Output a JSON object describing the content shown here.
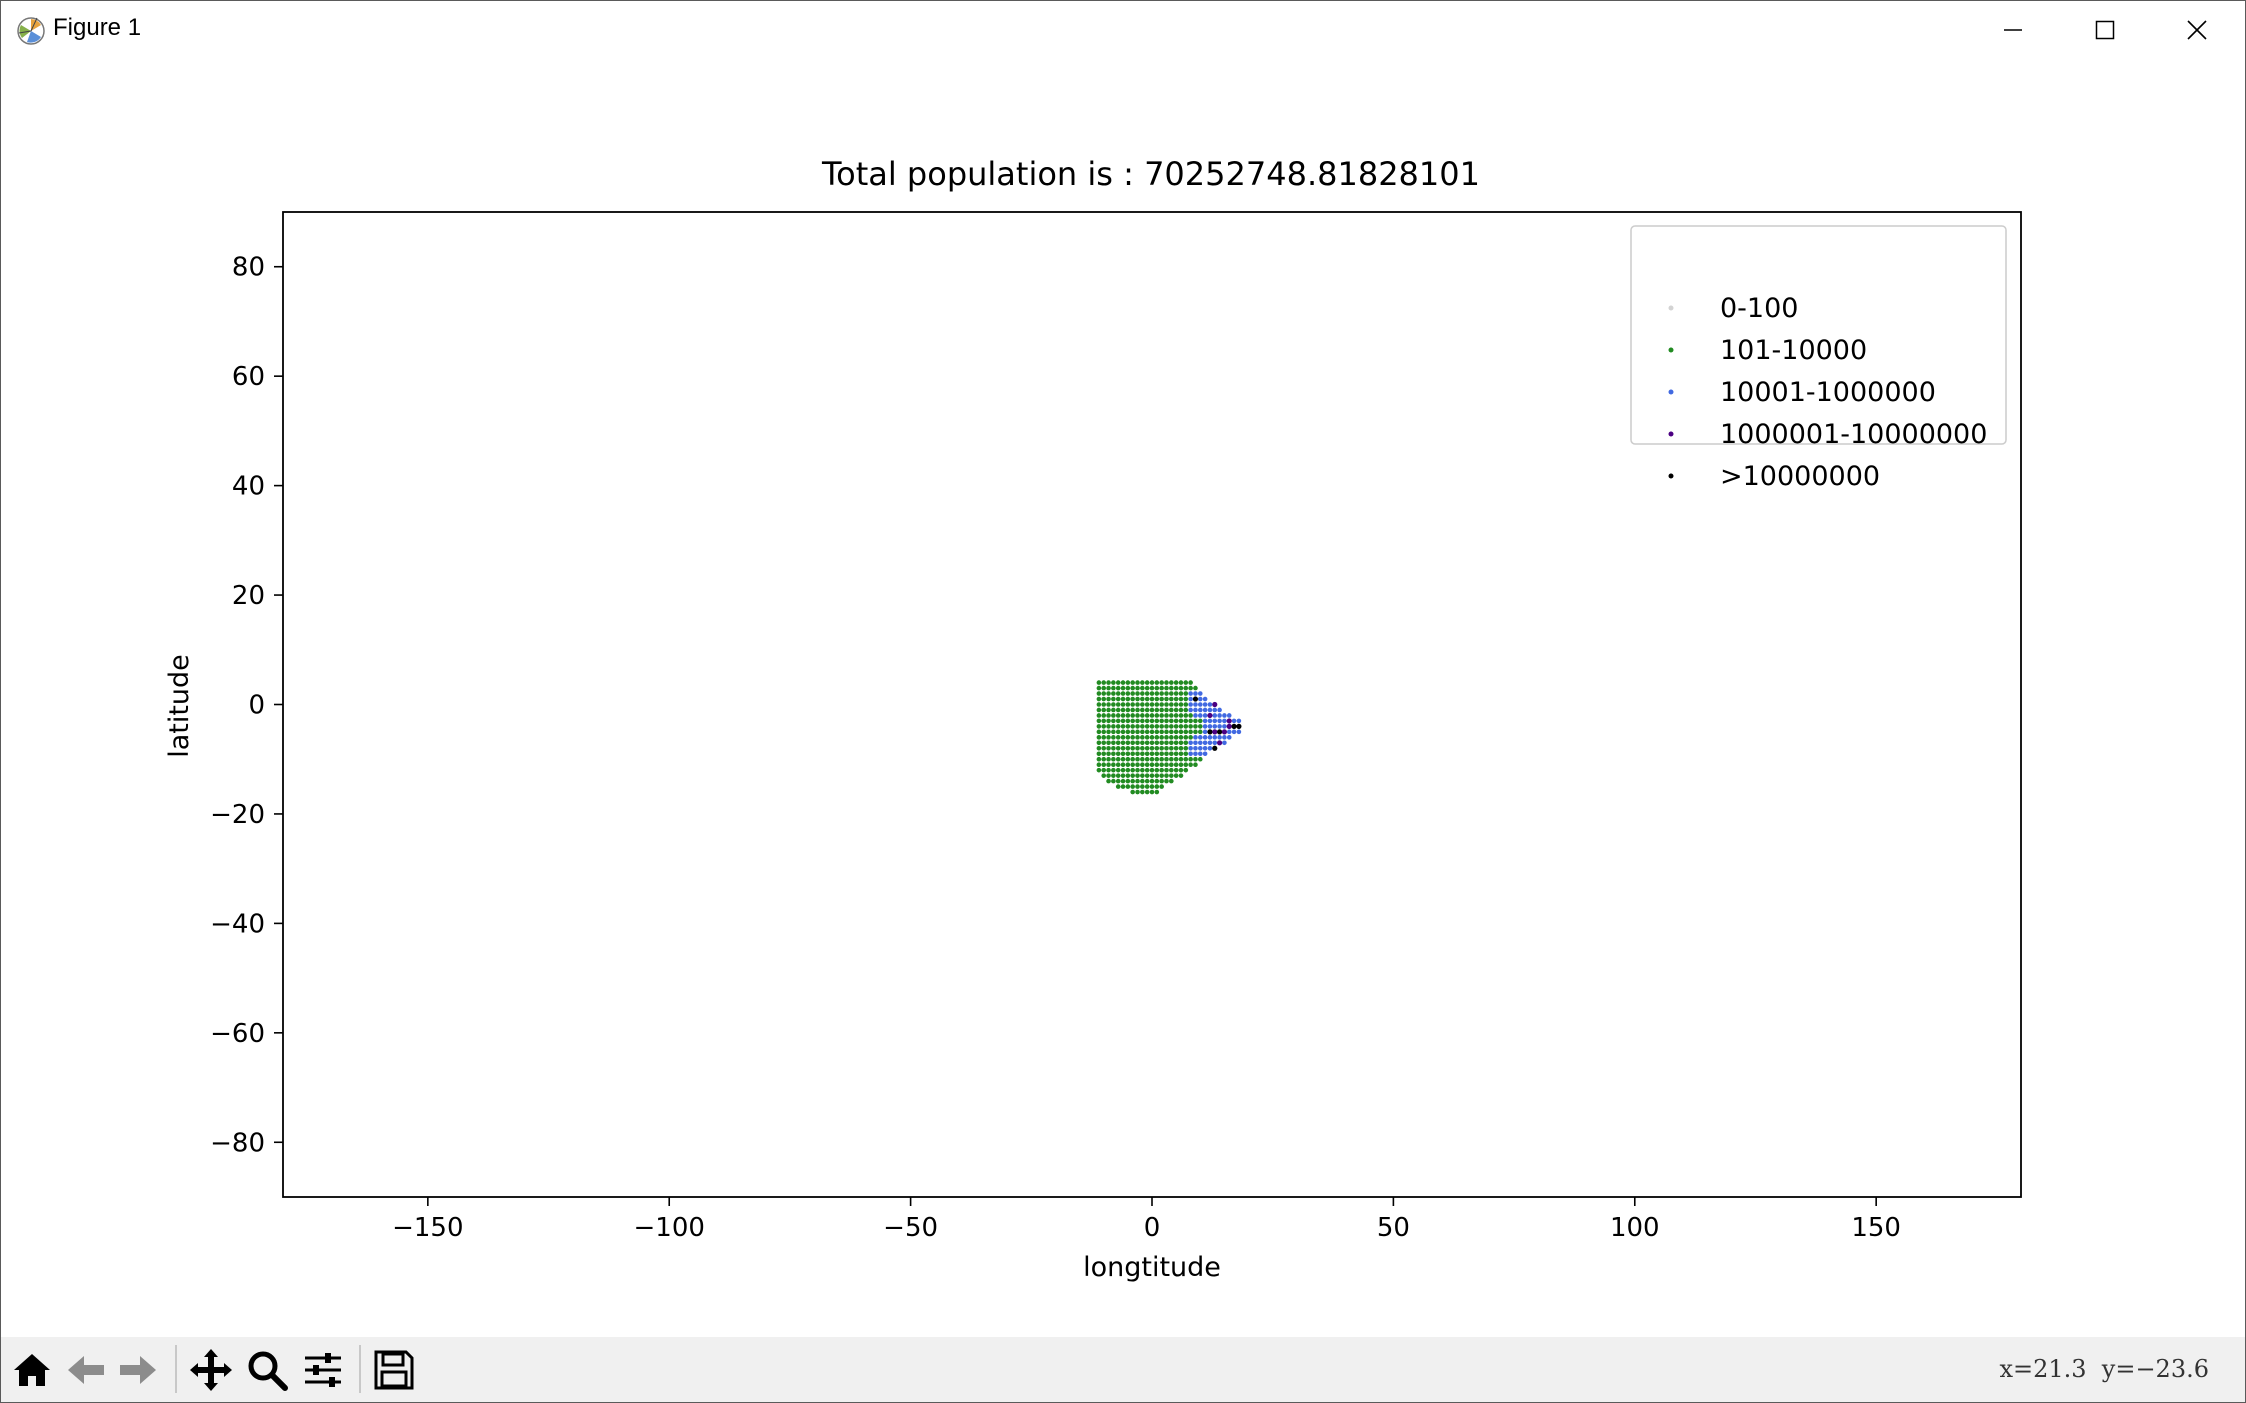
{
  "window": {
    "title": "Figure 1",
    "icons": {
      "app": "matplotlib-icon",
      "minimize": "minimize-icon",
      "maximize": "maximize-icon",
      "close": "close-icon"
    }
  },
  "chart_data": {
    "type": "scatter",
    "title": "Total population is : 70252748.81828101",
    "xlabel": "longtitude",
    "ylabel": "latitude",
    "xlim": [
      -180,
      180
    ],
    "ylim": [
      -90,
      90
    ],
    "x_ticks": [
      "−150",
      "−100",
      "−50",
      "0",
      "50",
      "100",
      "150"
    ],
    "x_tick_values": [
      -150,
      -100,
      -50,
      0,
      50,
      100,
      150
    ],
    "y_ticks": [
      "80",
      "60",
      "40",
      "20",
      "0",
      "−20",
      "−40",
      "−60",
      "−80"
    ],
    "y_tick_values": [
      80,
      60,
      40,
      20,
      0,
      -20,
      -40,
      -60,
      -80
    ],
    "grid": false,
    "legend_position": "top-right",
    "grid_step_degrees": 1,
    "series": [
      {
        "name": "0-100",
        "color": "#d3d3d3"
      },
      {
        "name": "101-10000",
        "color": "#228b22"
      },
      {
        "name": "10001-1000000",
        "color": "#4169e1"
      },
      {
        "name": "1000001-10000000",
        "color": "#4b0082"
      },
      {
        "name": ">10000000",
        "color": "#000000"
      }
    ],
    "region": {
      "rows": [
        {
          "lat": 4,
          "lon_min": -11,
          "lon_max": 8,
          "class_by_lon": []
        },
        {
          "lat": 3,
          "lon_min": -11,
          "lon_max": 9
        },
        {
          "lat": 2,
          "lon_min": -11,
          "lon_max": 10
        },
        {
          "lat": 1,
          "lon_min": -11,
          "lon_max": 11
        },
        {
          "lat": 0,
          "lon_min": -11,
          "lon_max": 13
        },
        {
          "lat": -1,
          "lon_min": -11,
          "lon_max": 14
        },
        {
          "lat": -2,
          "lon_min": -11,
          "lon_max": 16
        },
        {
          "lat": -3,
          "lon_min": -11,
          "lon_max": 18
        },
        {
          "lat": -4,
          "lon_min": -11,
          "lon_max": 18
        },
        {
          "lat": -5,
          "lon_min": -11,
          "lon_max": 18
        },
        {
          "lat": -6,
          "lon_min": -11,
          "lon_max": 16
        },
        {
          "lat": -7,
          "lon_min": -11,
          "lon_max": 15
        },
        {
          "lat": -8,
          "lon_min": -11,
          "lon_max": 13
        },
        {
          "lat": -9,
          "lon_min": -11,
          "lon_max": 11
        },
        {
          "lat": -10,
          "lon_min": -11,
          "lon_max": 10
        },
        {
          "lat": -11,
          "lon_min": -11,
          "lon_max": 9
        },
        {
          "lat": -12,
          "lon_min": -11,
          "lon_max": 7
        },
        {
          "lat": -13,
          "lon_min": -10,
          "lon_max": 6
        },
        {
          "lat": -14,
          "lon_min": -9,
          "lon_max": 4
        },
        {
          "lat": -15,
          "lon_min": -7,
          "lon_max": 2
        },
        {
          "lat": -16,
          "lon_min": -4,
          "lon_max": 1
        }
      ],
      "dense_points": [
        {
          "lon": 9,
          "lat": 1,
          "cls": 4
        },
        {
          "lon": 13,
          "lat": 0,
          "cls": 3
        },
        {
          "lon": 12,
          "lat": -2,
          "cls": 3
        },
        {
          "lon": 16,
          "lat": -3,
          "cls": 3
        },
        {
          "lon": 17,
          "lat": -4,
          "cls": 4
        },
        {
          "lon": 12,
          "lat": -5,
          "cls": 4
        },
        {
          "lon": 13,
          "lat": -5,
          "cls": 3
        },
        {
          "lon": 14,
          "lat": -5,
          "cls": 4
        },
        {
          "lon": 15,
          "lat": -5,
          "cls": 3
        },
        {
          "lon": 16,
          "lat": -4,
          "cls": 3
        },
        {
          "lon": 18,
          "lat": -4,
          "cls": 4
        },
        {
          "lon": 13,
          "lat": -8,
          "cls": 4
        },
        {
          "lon": 14,
          "lat": -7,
          "cls": 3
        }
      ]
    }
  },
  "toolbar": {
    "buttons": [
      {
        "name": "home-icon"
      },
      {
        "name": "back-arrow-icon"
      },
      {
        "name": "forward-arrow-icon"
      },
      {
        "name": "pan-icon"
      },
      {
        "name": "zoom-icon"
      },
      {
        "name": "configure-subplots-icon"
      },
      {
        "name": "save-icon"
      }
    ],
    "coords": "x=21.3  y=−23.6"
  }
}
